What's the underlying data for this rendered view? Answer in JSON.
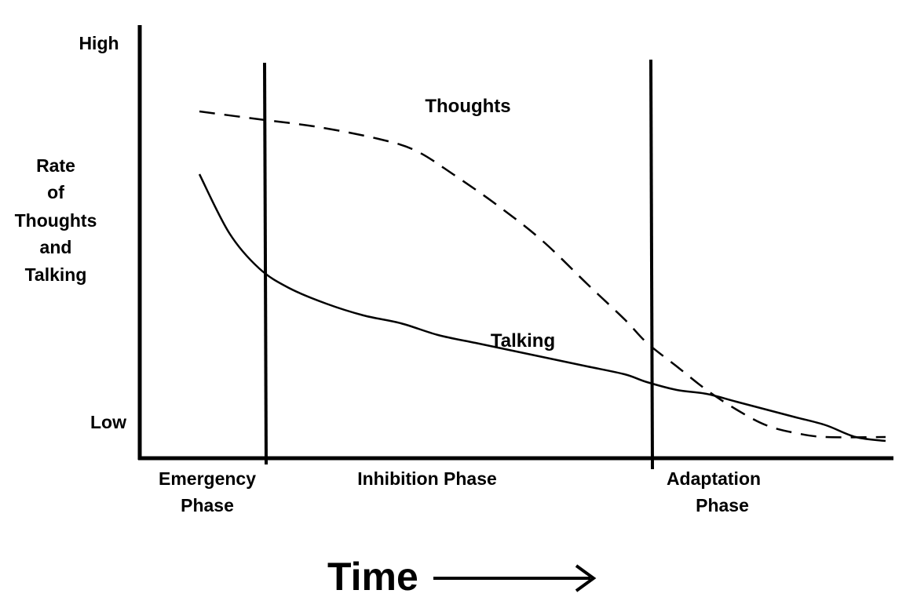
{
  "chart_data": {
    "type": "line",
    "title": "",
    "xlabel": "Time",
    "ylabel_lines": [
      "Rate",
      "of",
      "Thoughts",
      "and",
      "Talking"
    ],
    "y_ticks": [
      "High",
      "Low"
    ],
    "ylim": [
      0,
      1
    ],
    "xlim": [
      0,
      1
    ],
    "grid": false,
    "legend": "none",
    "phases": [
      {
        "label_lines": [
          "Emergency",
          "Phase"
        ],
        "start": 0.0,
        "end": 0.16
      },
      {
        "label_lines": [
          "Inhibition Phase"
        ],
        "start": 0.16,
        "end": 0.68
      },
      {
        "label_lines": [
          "Adaptation",
          "Phase"
        ],
        "start": 0.68,
        "end": 1.0
      }
    ],
    "series": [
      {
        "name": "Thoughts",
        "style": "dashed",
        "x": [
          0.08,
          0.16,
          0.24,
          0.32,
          0.37,
          0.42,
          0.48,
          0.54,
          0.6,
          0.65,
          0.68,
          0.72,
          0.76,
          0.8,
          0.84,
          0.88,
          0.92,
          1.0
        ],
        "y": [
          0.86,
          0.84,
          0.82,
          0.79,
          0.76,
          0.7,
          0.62,
          0.53,
          0.42,
          0.33,
          0.27,
          0.21,
          0.15,
          0.1,
          0.06,
          0.04,
          0.03,
          0.03
        ]
      },
      {
        "name": "Talking",
        "style": "solid",
        "x": [
          0.08,
          0.12,
          0.16,
          0.2,
          0.25,
          0.3,
          0.35,
          0.4,
          0.45,
          0.5,
          0.55,
          0.6,
          0.65,
          0.68,
          0.72,
          0.76,
          0.8,
          0.84,
          0.88,
          0.92,
          0.96,
          1.0
        ],
        "y": [
          0.7,
          0.55,
          0.46,
          0.41,
          0.37,
          0.34,
          0.32,
          0.29,
          0.27,
          0.25,
          0.23,
          0.21,
          0.19,
          0.17,
          0.15,
          0.14,
          0.12,
          0.1,
          0.08,
          0.06,
          0.03,
          0.02
        ]
      }
    ]
  }
}
